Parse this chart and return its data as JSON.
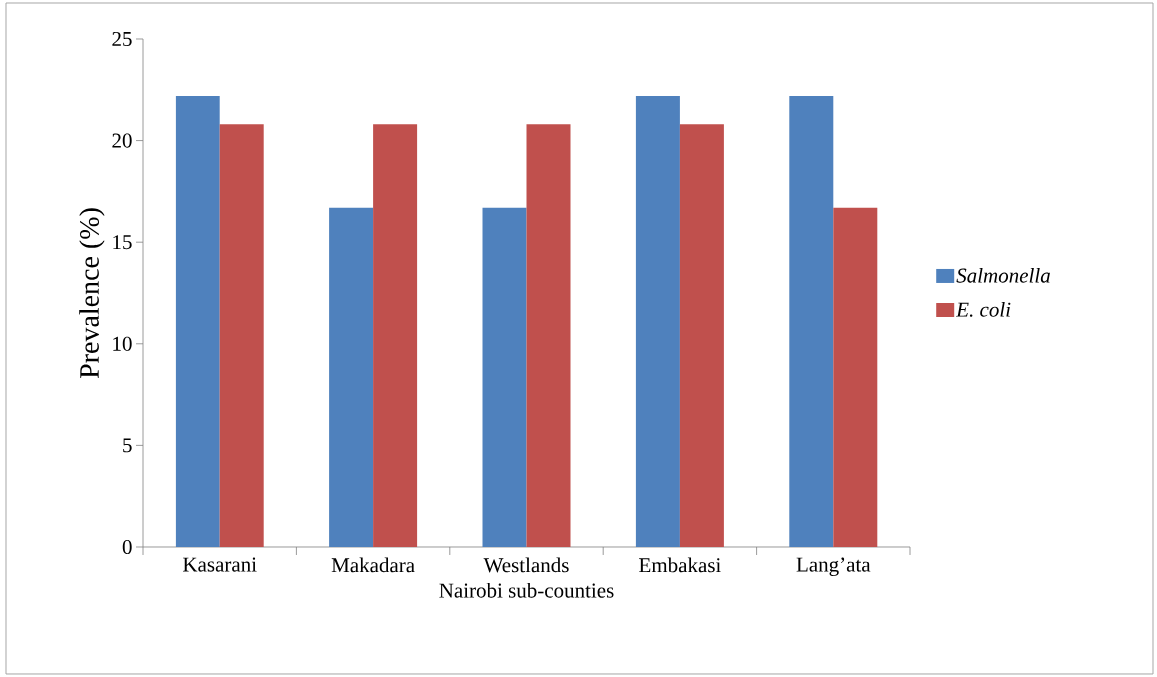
{
  "chart_data": {
    "type": "bar",
    "xlabel": "Nairobi sub-counties",
    "ylabel": "Prevalence (%)",
    "categories": [
      "Kasarani",
      "Makadara",
      "Westlands",
      "Embakasi",
      "Lang’ata"
    ],
    "series": [
      {
        "name": "Salmonella",
        "color": "#4f81bd",
        "values": [
          22.2,
          16.7,
          16.7,
          22.2,
          22.2
        ]
      },
      {
        "name": "E. coli",
        "color": "#c0504d",
        "values": [
          20.8,
          20.8,
          20.8,
          20.8,
          16.7
        ]
      }
    ],
    "ylim": [
      0,
      25
    ],
    "yticks": [
      0,
      5,
      10,
      15,
      20,
      25
    ],
    "grid": false,
    "legend": "right"
  }
}
